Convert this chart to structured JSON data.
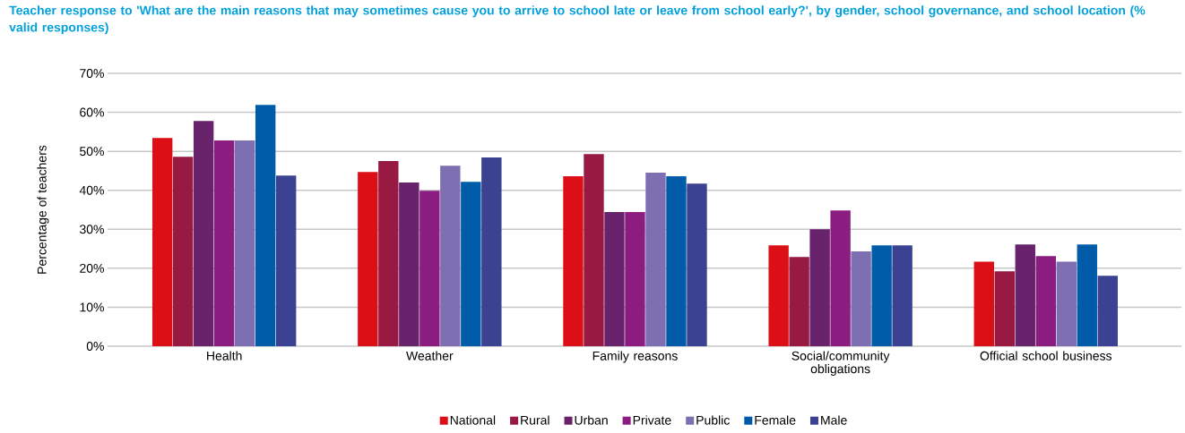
{
  "chart_data": {
    "type": "bar",
    "title": "Teacher response to 'What are the main reasons that may sometimes cause you to arrive to school late or leave from school early?', by gender, school governance, and school location (% valid responses)",
    "ylabel": "Percentage of teachers",
    "categories": [
      "Health",
      "Weather",
      "Family reasons",
      "Social/community obligations",
      "Official school business"
    ],
    "series": [
      {
        "name": "National",
        "color": "#dc0e16",
        "values": [
          53.4,
          44.7,
          43.6,
          25.9,
          21.7
        ]
      },
      {
        "name": "Rural",
        "color": "#981942",
        "values": [
          48.6,
          47.5,
          49.3,
          22.9,
          19.2
        ]
      },
      {
        "name": "Urban",
        "color": "#69226c",
        "values": [
          57.8,
          42.0,
          34.4,
          30.0,
          26.1
        ]
      },
      {
        "name": "Private",
        "color": "#8c1d80",
        "values": [
          52.8,
          39.9,
          34.4,
          34.8,
          23.1
        ]
      },
      {
        "name": "Public",
        "color": "#7d6fb2",
        "values": [
          52.8,
          46.3,
          44.5,
          24.3,
          21.7
        ]
      },
      {
        "name": "Female",
        "color": "#005ca9",
        "values": [
          61.9,
          42.2,
          43.6,
          25.9,
          26.1
        ]
      },
      {
        "name": "Male",
        "color": "#3a4291",
        "values": [
          43.8,
          48.4,
          41.7,
          25.9,
          18.1
        ]
      }
    ],
    "ylim": [
      0,
      70
    ],
    "yticks": [
      {
        "value": 0,
        "label": "0%"
      },
      {
        "value": 10,
        "label": "10%"
      },
      {
        "value": 20,
        "label": "20%"
      },
      {
        "value": 30,
        "label": "30%"
      },
      {
        "value": 40,
        "label": "40%"
      },
      {
        "value": 50,
        "label": "50%"
      },
      {
        "value": 60,
        "label": "60%"
      },
      {
        "value": 70,
        "label": "70%"
      }
    ],
    "grid": "y",
    "legend": "bottom"
  }
}
